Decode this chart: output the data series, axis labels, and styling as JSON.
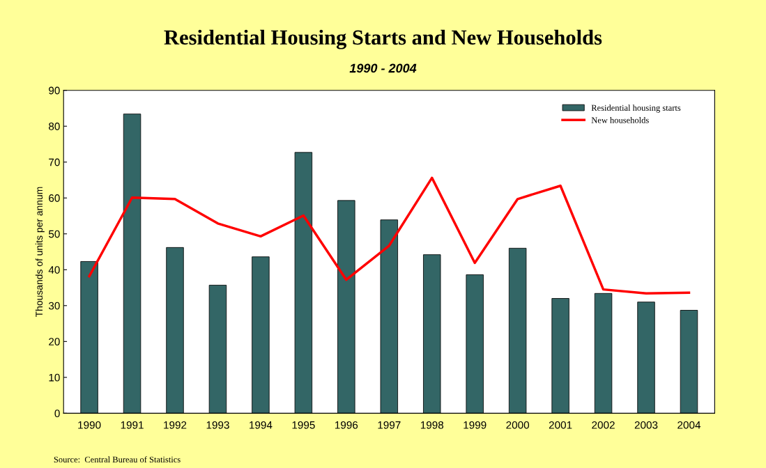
{
  "chart_data": {
    "type": "bar",
    "title": "Residential Housing Starts and New Households",
    "subtitle": "1990 - 2004",
    "ylabel": "Thousands of units per annum",
    "categories": [
      "1990",
      "1991",
      "1992",
      "1993",
      "1994",
      "1995",
      "1996",
      "1997",
      "1998",
      "1999",
      "2000",
      "2001",
      "2002",
      "2003",
      "2004"
    ],
    "series": [
      {
        "name": "Residential housing starts",
        "color": "#336666",
        "values": [
          42.3,
          83.4,
          46.2,
          35.7,
          43.6,
          72.7,
          59.3,
          53.9,
          44.2,
          38.6,
          46.0,
          32.0,
          33.4,
          31.0,
          28.7
        ]
      },
      {
        "name": "New households",
        "type": "line",
        "color": "#ff0000",
        "values": [
          38.2,
          60.1,
          59.7,
          52.9,
          49.3,
          55.1,
          37.2,
          46.7,
          65.6,
          41.9,
          59.7,
          63.4,
          34.5,
          33.4,
          33.6
        ]
      }
    ],
    "ylim": [
      0,
      90
    ],
    "yticks": [
      0,
      10,
      20,
      30,
      40,
      50,
      60,
      70,
      80,
      90
    ],
    "grid": false,
    "legend": "top right",
    "marker": "none",
    "line_style": "solid",
    "annotations": [
      "Source:  Central Bureau of Statistics"
    ]
  }
}
